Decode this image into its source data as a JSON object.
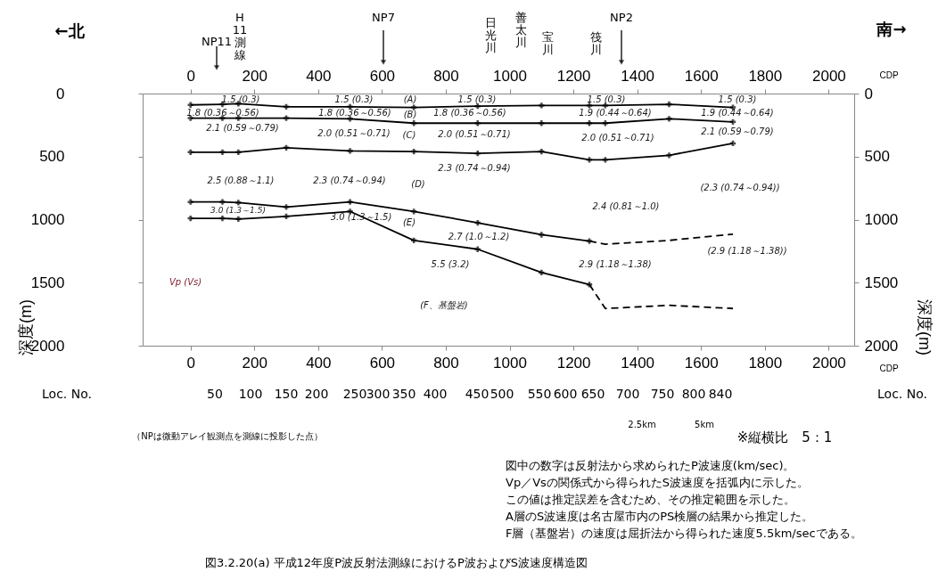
{
  "chart_data": {
    "type": "line",
    "title": "図3.2.20(a) 平成12年度P波反射法測線におけるP波およびS波速度構造図",
    "xlabel": "CDP",
    "x2label": "CDP",
    "ylabel": "深度(m)",
    "y2label": "深度(m)",
    "xlim": [
      -150,
      2080
    ],
    "xticks": [
      0,
      200,
      400,
      600,
      800,
      1000,
      1200,
      1400,
      1600,
      1800,
      2000
    ],
    "x2lim": [
      -150,
      2080
    ],
    "x2ticks": [
      0,
      200,
      400,
      600,
      800,
      1000,
      1200,
      1400,
      1600,
      1800,
      2000
    ],
    "ylim": [
      2000,
      0
    ],
    "yticks": [
      0,
      500,
      1000,
      1500,
      2000
    ],
    "y2lim": [
      2000,
      0
    ],
    "y2ticks": [
      0,
      500,
      1000,
      1500,
      2000
    ],
    "grid": false,
    "marker": "cross",
    "line_style": "solid",
    "series": [
      {
        "color": "#000000",
        "x": [
          0,
          100,
          150,
          300,
          500,
          700,
          900,
          1100,
          1250,
          1300,
          1500,
          1700
        ],
        "values": [
          90,
          85,
          80,
          105,
          105,
          110,
          100,
          95,
          95,
          95,
          85,
          110
        ]
      },
      {
        "color": "#000000",
        "x": [
          0,
          100,
          150,
          300,
          500,
          700,
          900,
          1100,
          1250,
          1300,
          1500,
          1700
        ],
        "values": [
          195,
          195,
          195,
          195,
          200,
          235,
          235,
          235,
          235,
          235,
          200,
          225
        ]
      },
      {
        "color": "#000000",
        "x": [
          0,
          100,
          150,
          300,
          500,
          700,
          900,
          1100,
          1250,
          1300,
          1500,
          1700
        ],
        "values": [
          465,
          465,
          465,
          430,
          455,
          460,
          475,
          460,
          525,
          525,
          490,
          395
        ]
      },
      {
        "color": "#000000",
        "x": [
          0,
          100,
          150,
          300,
          500,
          700,
          900,
          1100,
          1250
        ],
        "values": [
          860,
          860,
          865,
          900,
          860,
          935,
          1025,
          1120,
          1170
        ]
      },
      {
        "color": "#000000",
        "x": [
          1250,
          1300,
          1500,
          1700
        ],
        "values": [
          1170,
          1195,
          1165,
          1115
        ],
        "line_style": "dashed",
        "marker": "none"
      },
      {
        "color": "#000000",
        "x": [
          0,
          100,
          150,
          300,
          500,
          700,
          900,
          1100,
          1250
        ],
        "values": [
          990,
          990,
          995,
          975,
          935,
          1165,
          1235,
          1420,
          1515
        ]
      },
      {
        "color": "#000000",
        "x": [
          1250,
          1300,
          1500,
          1700
        ],
        "values": [
          1515,
          1705,
          1680,
          1705
        ],
        "line_style": "dashed",
        "marker": "none"
      }
    ],
    "annotations": [
      "←北",
      "南→",
      "Vp (Vs)",
      "（NPは微動アレイ観測点を測線に投影した点）",
      "2.5km",
      "5km",
      "※縦横比　5：1",
      "図中の数字は反射法から求められたP波速度(km/sec)。",
      "Vp／Vsの関係式から得られたS波速度を括弧内に示した。",
      "この値は推定誤差を含むため、その推定範囲を示した。",
      "A層のS波速度は名古屋市内のPS検層の結果から推定した。",
      "F層（基盤岩）の速度は屈折法から得られた速度5.5km/secである。",
      "NP11",
      "H11測線",
      "NP7",
      "日光川",
      "善太川",
      "宝川",
      "筏川",
      "NP2",
      "(A)",
      "1.5 (0.3)",
      "1.5 (0.3)",
      "1.5 (0.3)",
      "1.5 (0.3)",
      "1.5 (0.3)",
      "(B)",
      "1.8 (0.36～0.56)",
      "1.8 (0.36～0.56)",
      "1.8 (0.36～0.56)",
      "1.9 (0.44～0.64)",
      "1.9 (0.44～0.64)",
      "2.1 (0.59～0.79)",
      "2.0 (0.51～0.71)",
      "(C)",
      "2.0 (0.51～0.71)",
      "2.0 (0.51～0.71)",
      "2.1 (0.59～0.79)",
      "2.5  (0.88～1.1)",
      "2.3 (0.74～0.94)",
      "(D)",
      "2.3 (0.74～0.94)",
      "(2.3 (0.74～0.94))",
      "2.4 (0.81～1.0)",
      "3.0 (1.3～1.5)",
      "3.0 (1.3～1.5)",
      "(E)",
      "2.7 (1.0～1.2)",
      "(2.9 (1.18～1.38))",
      "2.9 (1.18～1.38)",
      "5.5 (3.2)",
      "(F、基盤岩)",
      "Loc. No.",
      "50",
      "100",
      "150",
      "200",
      "250",
      "300",
      "350",
      "400",
      "450",
      "500",
      "550",
      "600",
      "650",
      "700",
      "750",
      "800",
      "840",
      "Loc. No."
    ]
  }
}
